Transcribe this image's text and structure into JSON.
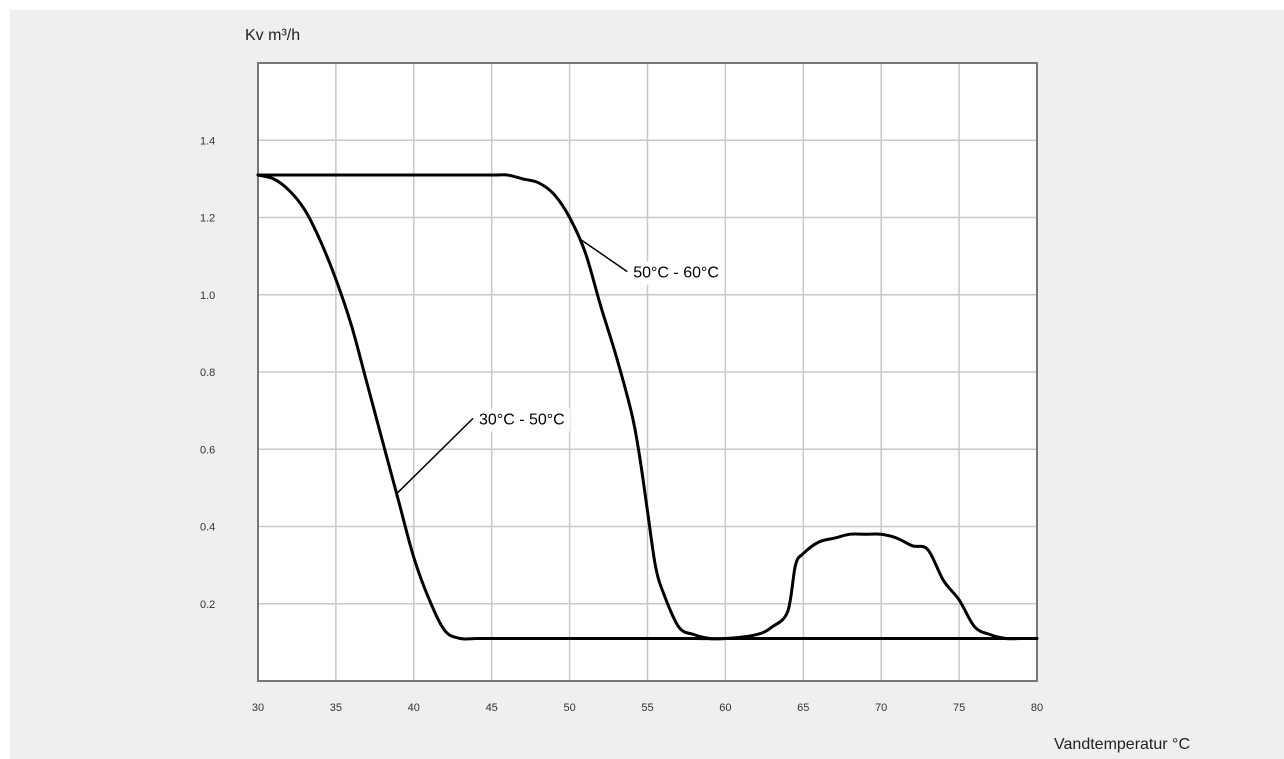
{
  "chart_data": {
    "type": "line",
    "title": "",
    "ylabel": "Kv m³/h",
    "xlabel": "Vandtemperatur °C",
    "xlim": [
      30,
      80
    ],
    "ylim": [
      0,
      1.6
    ],
    "grid": true,
    "xticks": [
      30,
      35,
      40,
      45,
      50,
      55,
      60,
      65,
      70,
      75,
      80
    ],
    "yticks": [
      0.2,
      0.4,
      0.6,
      0.8,
      1.0,
      1.2,
      1.4
    ],
    "series": [
      {
        "name": "30°C - 50°C",
        "x": [
          30,
          31,
          32,
          33,
          34,
          35,
          36,
          37,
          38,
          39,
          40,
          41,
          42,
          43,
          44,
          45,
          50,
          55,
          58,
          60,
          62,
          63,
          64,
          64.5,
          65,
          66,
          67,
          68,
          69,
          70,
          71,
          72,
          73,
          74,
          75,
          76,
          77,
          78,
          79,
          80
        ],
        "y": [
          1.31,
          1.3,
          1.27,
          1.22,
          1.14,
          1.04,
          0.92,
          0.77,
          0.62,
          0.47,
          0.32,
          0.21,
          0.13,
          0.11,
          0.11,
          0.11,
          0.11,
          0.11,
          0.11,
          0.11,
          0.12,
          0.14,
          0.18,
          0.3,
          0.33,
          0.36,
          0.37,
          0.38,
          0.38,
          0.38,
          0.37,
          0.35,
          0.34,
          0.26,
          0.21,
          0.14,
          0.12,
          0.11,
          0.11,
          0.11
        ]
      },
      {
        "name": "50°C - 60°C",
        "x": [
          30,
          35,
          40,
          45,
          46,
          47,
          48,
          49,
          50,
          51,
          52,
          53,
          54,
          54.5,
          55,
          55.5,
          56,
          57,
          58,
          59,
          60,
          62,
          64,
          66,
          68,
          70,
          72,
          74,
          76,
          78,
          80
        ],
        "y": [
          1.31,
          1.31,
          1.31,
          1.31,
          1.31,
          1.3,
          1.29,
          1.26,
          1.2,
          1.11,
          0.97,
          0.84,
          0.69,
          0.58,
          0.44,
          0.3,
          0.23,
          0.14,
          0.12,
          0.11,
          0.11,
          0.11,
          0.11,
          0.11,
          0.11,
          0.11,
          0.11,
          0.11,
          0.11,
          0.11,
          0.11
        ]
      }
    ],
    "annotations": [
      {
        "text": "30°C - 50°C",
        "series": 0,
        "at_x": 38.9,
        "label_x": 43.8,
        "label_y": 0.68
      },
      {
        "text": "50°C - 60°C",
        "series": 1,
        "at_x": 50.6,
        "label_x": 53.7,
        "label_y": 1.06
      }
    ]
  }
}
